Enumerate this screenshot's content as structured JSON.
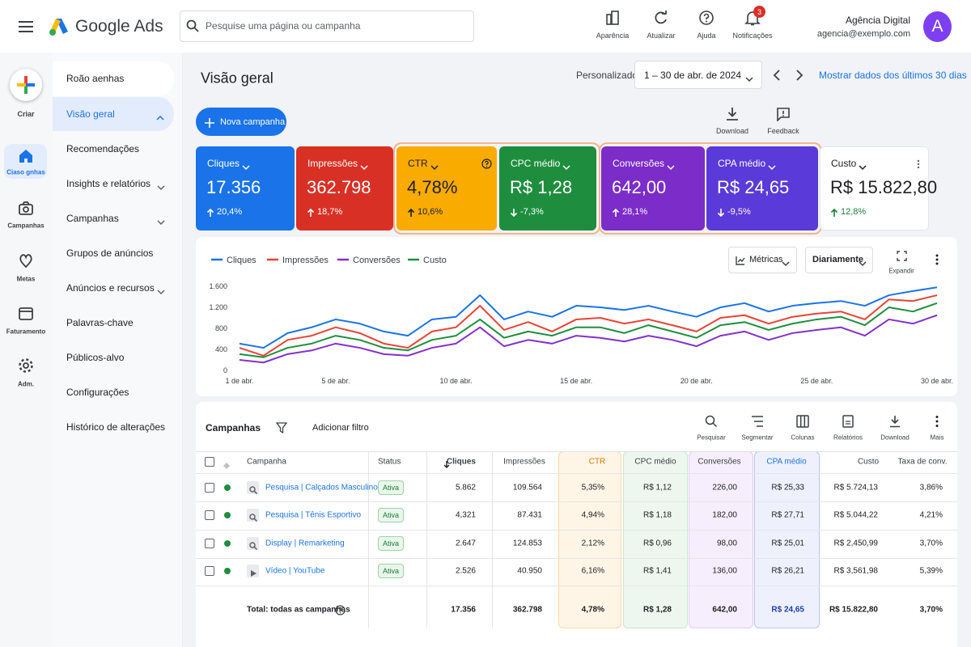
{
  "header": {
    "brand": "Google Ads",
    "search_placeholder": "Pesquise uma página ou campanha",
    "actions": [
      "Aparência",
      "Atualizar",
      "Ajuda",
      "Notificações"
    ],
    "notifications": 3,
    "user_name": "Agência Digital",
    "user_email": "agencia@exemplo.com",
    "avatar": "A"
  },
  "rail": {
    "create": "Criar",
    "items": [
      "Ciaso gnhas",
      "Campanhas",
      "Metas",
      "Faturamento",
      "Adm."
    ],
    "selected": 0
  },
  "nav": {
    "items": [
      {
        "label": "Roão aenhas"
      },
      {
        "label": "Visão geral",
        "selected": true
      },
      {
        "label": "Recomendações"
      },
      {
        "label": "Insights e relatórios",
        "expandable": true
      },
      {
        "label": "Campanhas",
        "expandable": true
      },
      {
        "label": "Grupos de anúncios"
      },
      {
        "label": "Anúncios e recursos",
        "expandable": true
      },
      {
        "label": "Palavras-chave"
      },
      {
        "label": "Públicos-alvo"
      },
      {
        "label": "Configurações"
      },
      {
        "label": "Histórico de alterações"
      }
    ]
  },
  "page": {
    "title": "Visão geral",
    "range_label": "Personalizado",
    "date_range": "1 – 30 de abr. de 2024",
    "compare_link": "Mostrar dados dos últimos 30 dias",
    "new_campaign": "Nova campanha",
    "download": "Download",
    "feedback": "Feedback"
  },
  "metrics": [
    {
      "label": "Cliques",
      "value": "17.356",
      "change": "20,4%",
      "trend": "up",
      "color": "#1a73e8",
      "text_color": "#ffffff"
    },
    {
      "label": "Impressões",
      "value": "362.798",
      "change": "18,7%",
      "trend": "up",
      "color": "#d93025",
      "text_color": "#ffffff"
    },
    {
      "label": "CTR",
      "value": "4,78%",
      "change": "10,6%",
      "trend": "up",
      "color": "#f9ab00",
      "text_color": "#202124"
    },
    {
      "label": "CPC médio",
      "value": "R$ 1,28",
      "change": "-7,3%",
      "trend": "down",
      "color": "#1e8e3e",
      "text_color": "#ffffff"
    },
    {
      "label": "Conversões",
      "value": "642,00",
      "change": "28,1%",
      "trend": "up",
      "color": "#7b2cc9",
      "text_color": "#ffffff"
    },
    {
      "label": "CPA médio",
      "value": "R$ 24,65",
      "change": "-9,5%",
      "trend": "down",
      "color": "#5a3ad9",
      "text_color": "#ffffff"
    },
    {
      "label": "Custo",
      "value": "R$ 15.822,80",
      "change": "12,8%",
      "trend": "up",
      "color": "#ffffff",
      "text_color": "#202124"
    }
  ],
  "chart_controls": {
    "metrics": "Métricas",
    "interval": "Diariamente",
    "expand": "Expandir"
  },
  "chart_data": {
    "type": "line",
    "x": [
      1,
      2,
      3,
      4,
      5,
      6,
      7,
      8,
      9,
      10,
      11,
      12,
      13,
      14,
      15,
      16,
      17,
      18,
      19,
      20,
      21,
      22,
      23,
      24,
      25,
      26,
      27,
      28,
      29,
      30
    ],
    "xlim": [
      1,
      30
    ],
    "xticks": [
      {
        "value": 1,
        "label": "1 de abr."
      },
      {
        "value": 5,
        "label": "5 de abr."
      },
      {
        "value": 10,
        "label": "10 de abr."
      },
      {
        "value": 15,
        "label": "15 de abr."
      },
      {
        "value": 20,
        "label": "20 de abr."
      },
      {
        "value": 25,
        "label": "25 de abr."
      },
      {
        "value": 30,
        "label": "30 de abr."
      }
    ],
    "ylim": [
      0,
      1600
    ],
    "yticks": [
      0,
      400,
      800,
      {
        "value": 1200,
        "label": "1.200"
      },
      {
        "value": 1600,
        "label": "1.600"
      }
    ],
    "grid": false,
    "series": [
      {
        "name": "Cliques",
        "color": "#1a73e8",
        "values": [
          510,
          430,
          710,
          820,
          970,
          890,
          740,
          660,
          970,
          1020,
          1430,
          970,
          1120,
          1020,
          1230,
          1200,
          1150,
          1230,
          1120,
          1020,
          1200,
          1280,
          1120,
          1230,
          1280,
          1320,
          1230,
          1430,
          1510,
          1580
        ]
      },
      {
        "name": "Impressões",
        "color": "#ea4335",
        "values": [
          430,
          280,
          580,
          660,
          820,
          710,
          510,
          430,
          740,
          820,
          1230,
          770,
          920,
          740,
          970,
          1000,
          890,
          970,
          860,
          740,
          1000,
          1050,
          890,
          1020,
          1080,
          1120,
          970,
          1350,
          1320,
          1430
        ]
      },
      {
        "name": "Conversões",
        "color": "#8430ce",
        "values": [
          200,
          150,
          310,
          380,
          510,
          430,
          310,
          280,
          430,
          510,
          820,
          460,
          580,
          510,
          660,
          620,
          550,
          660,
          580,
          460,
          660,
          740,
          580,
          710,
          770,
          820,
          660,
          970,
          890,
          1050
        ]
      },
      {
        "name": "Custo",
        "color": "#1e8e3e",
        "values": [
          310,
          250,
          430,
          510,
          660,
          580,
          430,
          380,
          580,
          660,
          970,
          620,
          740,
          660,
          820,
          820,
          710,
          860,
          740,
          620,
          860,
          920,
          770,
          890,
          970,
          1020,
          860,
          1200,
          1120,
          1280
        ]
      }
    ]
  },
  "campaigns": {
    "title": "Campanhas",
    "add_filter": "Adicionar filtro",
    "tools": [
      "Pesquisar",
      "Segmentar",
      "Colunas",
      "Relatórios",
      "Download",
      "Mais"
    ],
    "columns": [
      {
        "label": "Campanha"
      },
      {
        "label": "Status"
      },
      {
        "label": "Cliques",
        "sorted": true
      },
      {
        "label": "Impressões"
      },
      {
        "label": "CTR",
        "tint": "#fff5e6",
        "border": "#fbd7a0"
      },
      {
        "label": "CPC médio",
        "tint": "#eef7ef",
        "border": "#c9e6cc"
      },
      {
        "label": "Conversões",
        "tint": "#f6eefc",
        "border": "#e0cdf3"
      },
      {
        "label": "CPA médio",
        "tint": "#eef1fd",
        "border": "#b9c4f5"
      },
      {
        "label": "Custo"
      },
      {
        "label": "Taxa de conv."
      }
    ],
    "rows": [
      {
        "name": "Pesquisa | Calçados Masculinos",
        "kind": "search",
        "status": "Ativa",
        "cells": [
          "5.862",
          "109.564",
          "5,35%",
          "R$ 1,12",
          "226,00",
          "R$ 25,33",
          "R$ 5.724,13",
          "3,86%"
        ]
      },
      {
        "name": "Pesquisa | Tênis Esportivo",
        "kind": "search",
        "status": "Ativa",
        "cells": [
          "4,321",
          "87.431",
          "4,94%",
          "R$ 1,18",
          "182,00",
          "R$ 27,71",
          "R$ 5.044,22",
          "4,21%"
        ]
      },
      {
        "name": "Display | Remarketing",
        "kind": "search",
        "status": "Ativa",
        "cells": [
          "2.647",
          "124.853",
          "2,12%",
          "R$ 0,96",
          "98,00",
          "R$ 25,01",
          "R$ 2,450,99",
          "3,70%"
        ]
      },
      {
        "name": "Vídeo | YouTube",
        "kind": "video",
        "status": "Ativa",
        "cells": [
          "2.526",
          "40.950",
          "6,16%",
          "R$ 1,41",
          "136,00",
          "R$ 26,21",
          "R$ 3,561,98",
          "5,39%"
        ]
      }
    ],
    "total": {
      "label": "Total: todas as campanhas",
      "cells": [
        "17.356",
        "362.798",
        "4,78%",
        "R$ 1,28",
        "642,00",
        "R$ 24,65",
        "R$ 15.822,80",
        "3,70%"
      ]
    }
  }
}
